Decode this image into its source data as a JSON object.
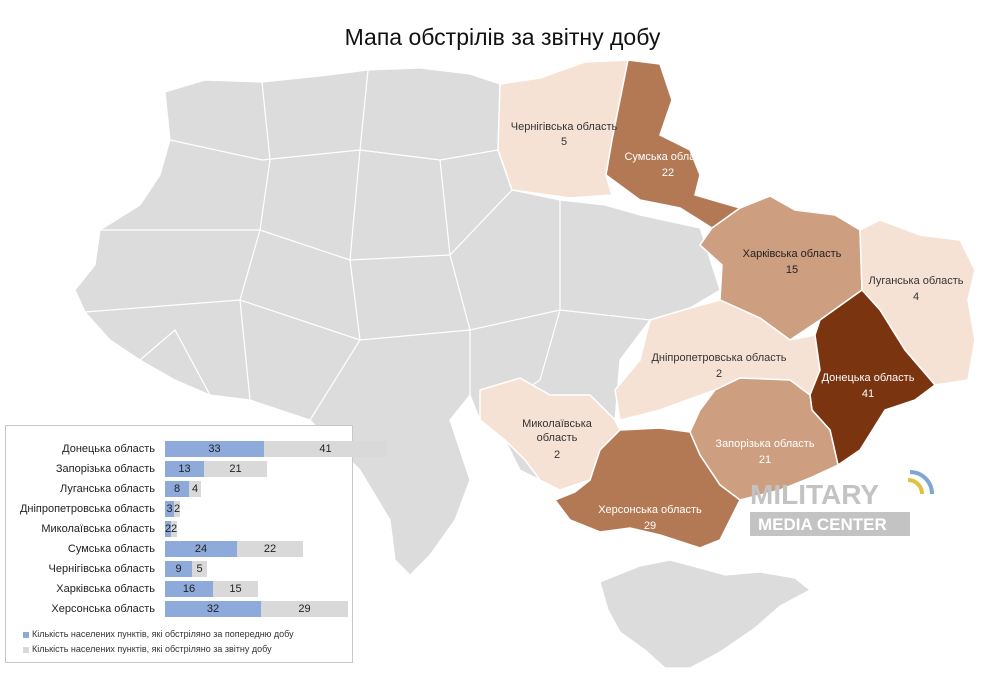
{
  "title": "Мапа обстрілів за звітну добу",
  "colors": {
    "base": "#dcdcdc",
    "scale": [
      "#f6e2d5",
      "#edc9b0",
      "#cd9e80",
      "#b37955",
      "#7a3410"
    ],
    "prev_bar": "#8eaadb",
    "cur_bar": "#d9d9d9"
  },
  "map_labels": [
    {
      "id": "chernihiv",
      "name": "Чернігівська область",
      "value": "5"
    },
    {
      "id": "sumy",
      "name": "Сумська область",
      "value": "22"
    },
    {
      "id": "kharkiv",
      "name": "Харківська область",
      "value": "15"
    },
    {
      "id": "luhansk",
      "name": "Луганська область",
      "value": "4"
    },
    {
      "id": "dnipro",
      "name": "Дніпропетровська область",
      "value": "2"
    },
    {
      "id": "donetsk",
      "name": "Донецька область",
      "value": "41"
    },
    {
      "id": "mykolaiv",
      "name": "Миколаївська\nобласть",
      "value": "2"
    },
    {
      "id": "zaporizhzhia",
      "name": "Запорізька область",
      "value": "21"
    },
    {
      "id": "kherson",
      "name": "Херсонська область",
      "value": "29"
    }
  ],
  "chart_data": {
    "type": "bar",
    "stacked": true,
    "orientation": "horizontal",
    "categories": [
      "Донецька область",
      "Запорізька область",
      "Луганська область",
      "Дніпропетровська область",
      "Миколаївська область",
      "Сумська область",
      "Чернігівська область",
      "Харківська область",
      "Херсонська область"
    ],
    "series": [
      {
        "name": "Кількість населених пунктів, які обстріляно за попередню добу",
        "values": [
          33,
          13,
          8,
          3,
          2,
          24,
          9,
          16,
          32
        ]
      },
      {
        "name": "Кількість населених пунктів, які обстріляно за звітну добу",
        "values": [
          41,
          21,
          4,
          2,
          2,
          22,
          5,
          15,
          29
        ]
      }
    ],
    "legend_position": "bottom"
  },
  "watermark": {
    "line1": "MILITARY",
    "line2": "MEDIA CENTER"
  }
}
